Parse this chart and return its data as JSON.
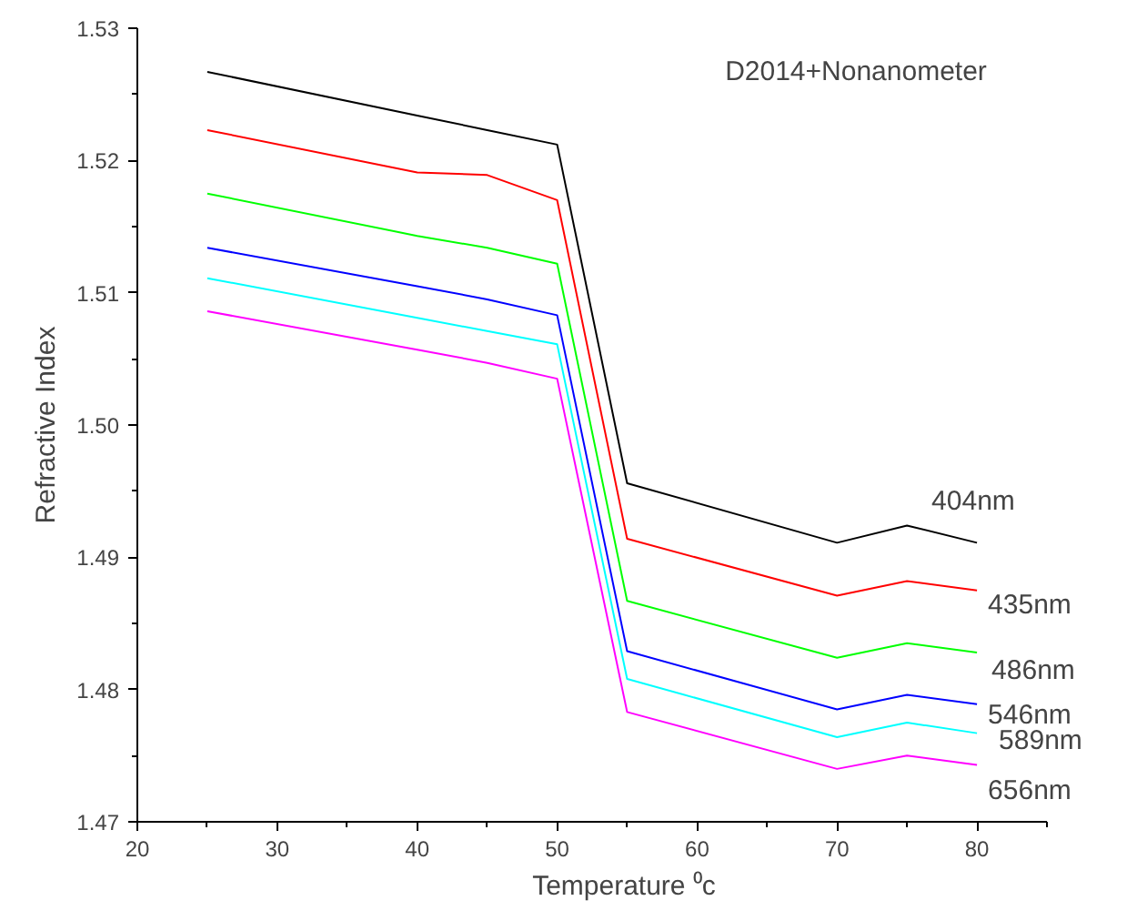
{
  "chart_data": {
    "type": "line",
    "title": "D2014+Nonanometer",
    "xlabel": "Temperature ⁰c",
    "ylabel": "Refractive Index",
    "x": [
      25,
      40,
      45,
      50,
      55,
      70,
      75,
      80
    ],
    "series": [
      {
        "name": "404nm",
        "color": "#000000",
        "values": [
          1.5267,
          1.5234,
          1.5223,
          1.5212,
          1.4956,
          1.4911,
          1.4924,
          1.4911
        ]
      },
      {
        "name": "435nm",
        "color": "#ff0000",
        "values": [
          1.5223,
          1.5191,
          1.5189,
          1.517,
          1.4914,
          1.4871,
          1.4882,
          1.4875
        ]
      },
      {
        "name": "486nm",
        "color": "#00ff00",
        "values": [
          1.5175,
          1.5143,
          1.5134,
          1.5122,
          1.4867,
          1.4824,
          1.4835,
          1.4828
        ]
      },
      {
        "name": "546nm",
        "color": "#0000ff",
        "values": [
          1.5134,
          1.5105,
          1.5095,
          1.5083,
          1.4829,
          1.4785,
          1.4796,
          1.4789
        ]
      },
      {
        "name": "589nm",
        "color": "#00ffff",
        "values": [
          1.5111,
          1.5081,
          1.5071,
          1.5061,
          1.4808,
          1.4764,
          1.4775,
          1.4767
        ]
      },
      {
        "name": "656nm",
        "color": "#ff00ff",
        "values": [
          1.5086,
          1.5057,
          1.5047,
          1.5035,
          1.4783,
          1.474,
          1.475,
          1.4743
        ]
      }
    ],
    "xlim": [
      20,
      85
    ],
    "ylim": [
      1.47,
      1.53
    ],
    "xticks": [
      20,
      {
        "value": 25,
        "label": null
      },
      30,
      {
        "value": 35,
        "label": null
      },
      40,
      {
        "value": 45,
        "label": null
      },
      50,
      {
        "value": 55,
        "label": null
      },
      60,
      {
        "value": 65,
        "label": null
      },
      70,
      {
        "value": 75,
        "label": null
      },
      80,
      {
        "value": 85,
        "label": null
      }
    ],
    "yticks": [
      1.47,
      {
        "value": 1.475,
        "label": null
      },
      1.48,
      {
        "value": 1.485,
        "label": null
      },
      1.49,
      {
        "value": 1.495,
        "label": null
      },
      {
        "value": 1.5,
        "label": "1.50"
      },
      {
        "value": 1.505,
        "label": null
      },
      1.51,
      {
        "value": 1.515,
        "label": null
      },
      1.52,
      {
        "value": 1.525,
        "label": null
      },
      1.53
    ],
    "grid": false,
    "legend": false,
    "line_style": "solid",
    "marker": "none"
  }
}
